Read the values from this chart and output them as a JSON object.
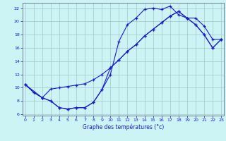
{
  "xlabel": "Graphe des températures (°c)",
  "bg_color": "#cdf4f4",
  "line_color": "#1a1acc",
  "grid_color": "#a0c8c8",
  "xlim_min": -0.3,
  "xlim_max": 23.3,
  "ylim_min": 5.8,
  "ylim_max": 22.8,
  "xticks": [
    0,
    1,
    2,
    3,
    4,
    5,
    6,
    7,
    8,
    9,
    10,
    11,
    12,
    13,
    14,
    15,
    16,
    17,
    18,
    19,
    20,
    21,
    22,
    23
  ],
  "yticks": [
    6,
    8,
    10,
    12,
    14,
    16,
    18,
    20,
    22
  ],
  "curve1_x": [
    0,
    1,
    2,
    3,
    4,
    5,
    6,
    7,
    8,
    9,
    10,
    11,
    12,
    13,
    14,
    15,
    16,
    17,
    18,
    19,
    20,
    21,
    22,
    23
  ],
  "curve1_y": [
    10.5,
    9.3,
    8.5,
    8.0,
    7.0,
    6.8,
    7.0,
    7.0,
    7.8,
    9.7,
    12.0,
    17.0,
    19.5,
    20.5,
    21.8,
    22.0,
    21.8,
    22.3,
    21.0,
    20.5,
    20.5,
    19.3,
    17.3,
    17.3
  ],
  "curve2_x": [
    0,
    2,
    3,
    4,
    5,
    6,
    7,
    8,
    9,
    10,
    11,
    12,
    13,
    14,
    15,
    16,
    17,
    18,
    19,
    20,
    21,
    22,
    23
  ],
  "curve2_y": [
    10.5,
    8.5,
    9.8,
    10.0,
    10.2,
    10.4,
    10.6,
    11.2,
    12.0,
    13.0,
    14.2,
    15.5,
    16.5,
    17.8,
    18.8,
    19.8,
    20.8,
    21.5,
    20.5,
    19.5,
    18.0,
    16.0,
    17.3
  ],
  "curve3_x": [
    0,
    1,
    2,
    3,
    4,
    5,
    6,
    7,
    8,
    9,
    10,
    11,
    12,
    13,
    14,
    15,
    16,
    17,
    18,
    19,
    20,
    21,
    22,
    23
  ],
  "curve3_y": [
    10.5,
    9.3,
    8.5,
    8.0,
    7.0,
    6.8,
    7.0,
    7.0,
    7.8,
    9.7,
    13.0,
    14.2,
    15.5,
    16.5,
    17.8,
    18.8,
    19.8,
    20.8,
    21.5,
    20.5,
    19.5,
    18.0,
    16.0,
    17.3
  ]
}
